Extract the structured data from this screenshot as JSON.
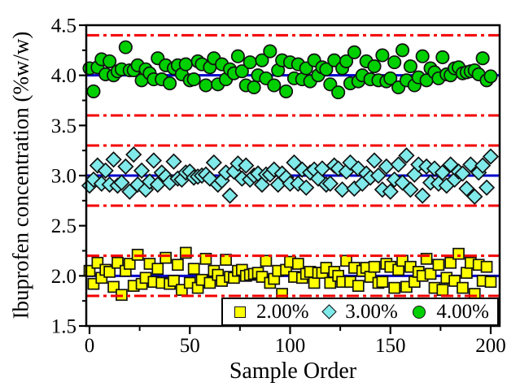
{
  "figure": {
    "background": "#ffffff",
    "axis_color": "#000000"
  },
  "chart_data": {
    "type": "scatter",
    "title": "",
    "xlabel": "Sample Order",
    "ylabel": "Ibuprofen concentration (%w/w)",
    "xlim": [
      0,
      200
    ],
    "ylim": [
      1.5,
      4.5
    ],
    "grid": "off",
    "x_tick_values": [
      0,
      50,
      100,
      150,
      200
    ],
    "x_tick_labels": [
      "0",
      "50",
      "100",
      "150",
      "200"
    ],
    "x_minor_ticks": [
      25,
      75,
      125,
      175
    ],
    "y_tick_values": [
      1.5,
      2.0,
      2.5,
      3.0,
      3.5,
      4.0,
      4.5
    ],
    "y_tick_labels": [
      "1.5",
      "2.0",
      "2.5",
      "3.0",
      "3.5",
      "4.0",
      "4.5"
    ],
    "y_minor_ticks": [
      1.75,
      2.25,
      2.75,
      3.25,
      3.75,
      4.25
    ],
    "center_lines": {
      "color": "#0000cc",
      "style": "solid",
      "values": [
        2.0,
        3.0,
        4.0
      ]
    },
    "limit_lines": {
      "color": "#f40000",
      "style": "dash-dot",
      "values": [
        1.8,
        2.2,
        2.7,
        3.3,
        3.6,
        4.4
      ]
    },
    "legend": {
      "position": "bottom-right-inside"
    },
    "x": [
      0,
      2,
      4,
      6,
      8,
      10,
      12,
      14,
      16,
      18,
      20,
      22,
      24,
      26,
      28,
      30,
      32,
      34,
      36,
      38,
      40,
      42,
      44,
      46,
      48,
      50,
      52,
      54,
      56,
      58,
      60,
      62,
      64,
      66,
      68,
      70,
      72,
      74,
      76,
      78,
      80,
      82,
      84,
      86,
      88,
      90,
      92,
      94,
      96,
      98,
      100,
      102,
      104,
      106,
      108,
      110,
      112,
      114,
      116,
      118,
      120,
      122,
      124,
      126,
      128,
      130,
      132,
      134,
      136,
      138,
      140,
      142,
      144,
      146,
      148,
      150,
      152,
      154,
      156,
      158,
      160,
      162,
      164,
      166,
      168,
      170,
      172,
      174,
      176,
      178,
      180,
      182,
      184,
      186,
      188,
      190,
      192,
      194,
      196,
      198,
      200
    ],
    "series": [
      {
        "name": "2.00%",
        "marker": "square",
        "fill": "#ffff00",
        "edge": "#111111",
        "mean": 2.0,
        "y": [
          2.05,
          1.92,
          2.13,
          1.98,
          2.06,
          2.04,
          1.89,
          2.13,
          1.81,
          2.05,
          2.12,
          1.9,
          2.21,
          1.92,
          1.98,
          2.12,
          1.94,
          2.07,
          1.93,
          2.18,
          1.92,
          1.95,
          2.11,
          1.86,
          2.23,
          1.93,
          2.07,
          1.88,
          1.96,
          2.17,
          1.93,
          2.05,
          2.01,
          1.95,
          2.16,
          1.99,
          1.98,
          2.05,
          2.06,
          2.0,
          2.01,
          2.02,
          2.03,
          1.99,
          2.15,
          1.93,
          1.97,
          2.05,
          1.82,
          2.06,
          2.14,
          1.99,
          2.12,
          1.98,
          2.02,
          2.04,
          1.93,
          2.03,
          2.03,
          2.08,
          1.93,
          2.04,
          2.0,
          1.94,
          2.15,
          1.94,
          2.08,
          1.9,
          2.05,
          2.08,
          1.99,
          2.09,
          1.93,
          1.94,
          2.12,
          2.09,
          1.88,
          2.06,
          2.15,
          1.89,
          2.09,
          1.94,
          2.04,
          2.0,
          2.17,
          2.02,
          1.88,
          2.11,
          1.86,
          1.98,
          2.13,
          1.95,
          2.22,
          1.88,
          2.03,
          2.13,
          1.82,
          2.11,
          1.95,
          2.09,
          1.94
        ]
      },
      {
        "name": "3.00%",
        "marker": "diamond",
        "fill": "#80e9e9",
        "edge": "#111111",
        "mean": 3.0,
        "y": [
          2.9,
          2.96,
          3.1,
          2.92,
          3.05,
          2.91,
          3.16,
          2.9,
          2.93,
          3.09,
          2.84,
          3.21,
          2.91,
          3.05,
          2.86,
          2.94,
          3.15,
          2.91,
          3.03,
          2.99,
          2.93,
          3.14,
          2.97,
          2.96,
          3.03,
          3.04,
          2.98,
          2.99,
          3.0,
          3.01,
          2.97,
          3.13,
          2.91,
          2.95,
          3.03,
          2.8,
          3.04,
          3.12,
          2.97,
          3.1,
          2.96,
          3.0,
          3.02,
          2.91,
          3.01,
          3.01,
          3.06,
          2.91,
          3.02,
          2.98,
          2.92,
          3.13,
          2.92,
          3.06,
          2.88,
          3.03,
          3.06,
          2.97,
          3.07,
          2.91,
          2.92,
          3.1,
          3.07,
          2.86,
          3.04,
          3.13,
          2.87,
          3.07,
          2.92,
          3.02,
          2.98,
          3.15,
          3.0,
          2.86,
          3.09,
          2.84,
          2.96,
          3.11,
          2.93,
          3.2,
          2.86,
          3.01,
          3.11,
          2.8,
          3.09,
          2.93,
          3.07,
          2.92,
          3.03,
          2.9,
          3.11,
          2.96,
          3.04,
          3.02,
          2.87,
          3.11,
          2.79,
          3.03,
          3.1,
          2.88,
          3.19
        ]
      },
      {
        "name": "4.00%",
        "marker": "circle",
        "fill": "#00d000",
        "edge": "#111111",
        "mean": 4.0,
        "y": [
          4.07,
          3.84,
          4.08,
          4.16,
          4.01,
          4.14,
          4.0,
          4.04,
          4.06,
          4.28,
          4.05,
          4.05,
          4.1,
          3.95,
          4.06,
          4.02,
          3.96,
          4.17,
          3.96,
          4.1,
          3.92,
          4.07,
          4.1,
          4.01,
          4.11,
          3.95,
          3.96,
          4.14,
          4.11,
          3.9,
          4.08,
          4.17,
          3.91,
          4.11,
          3.96,
          4.06,
          4.02,
          4.19,
          4.04,
          3.9,
          4.13,
          3.88,
          4.0,
          4.15,
          3.97,
          4.24,
          3.9,
          4.05,
          4.15,
          3.84,
          4.13,
          3.97,
          4.11,
          3.96,
          4.07,
          3.94,
          4.15,
          4.0,
          4.08,
          4.06,
          3.91,
          4.15,
          3.83,
          4.07,
          4.14,
          3.92,
          4.23,
          3.94,
          4.0,
          4.14,
          3.96,
          4.09,
          3.95,
          4.2,
          3.94,
          3.97,
          4.13,
          3.88,
          4.25,
          3.95,
          4.09,
          3.9,
          3.98,
          4.19,
          3.95,
          4.07,
          4.03,
          3.97,
          4.18,
          4.01,
          4.0,
          4.07,
          4.08,
          4.02,
          4.03,
          4.04,
          4.05,
          4.01,
          4.17,
          3.95,
          3.99
        ]
      }
    ]
  }
}
